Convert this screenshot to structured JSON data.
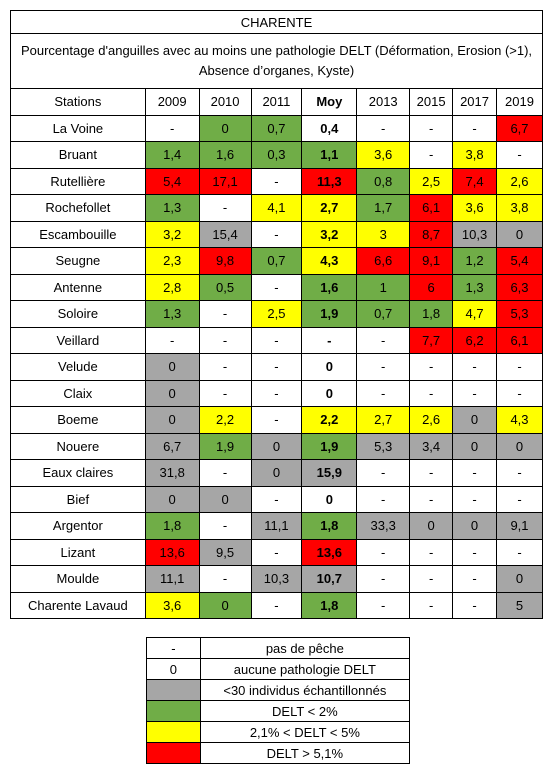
{
  "title": "CHARENTE",
  "subtitle": "Pourcentage d'anguilles avec au moins une pathologie DELT (Déformation, Erosion (>1), Absence d’organes, Kyste)",
  "table": {
    "header": [
      "Stations",
      "2009",
      "2010",
      "2011",
      "Moy",
      "2013",
      "2015",
      "2017",
      "2019"
    ],
    "colors": {
      "w": "#ffffff",
      "g": "#70ad47",
      "y": "#ffff00",
      "r": "#ff0000",
      "k": "#a6a6a6"
    },
    "rows": [
      {
        "cells": [
          "La Voine",
          "-",
          "0",
          "0,7",
          "0,4",
          "-",
          "-",
          "-",
          "6,7"
        ],
        "fill": "wwggwwwwr"
      },
      {
        "cells": [
          "Bruant",
          "1,4",
          "1,6",
          "0,3",
          "1,1",
          "3,6",
          "-",
          "3,8",
          "-"
        ],
        "fill": "wggggywyw"
      },
      {
        "cells": [
          "Rutellière",
          "5,4",
          "17,1",
          "-",
          "11,3",
          "0,8",
          "2,5",
          "7,4",
          "2,6"
        ],
        "fill": "wrrwrgyry"
      },
      {
        "cells": [
          "Rochefollet",
          "1,3",
          "-",
          "4,1",
          "2,7",
          "1,7",
          "6,1",
          "3,6",
          "3,8"
        ],
        "fill": "wgwyygryy"
      },
      {
        "cells": [
          "Escambouille",
          "3,2",
          "15,4",
          "-",
          "3,2",
          "3",
          "8,7",
          "10,3",
          "0"
        ],
        "fill": "wykwyyrkk"
      },
      {
        "cells": [
          "Seugne",
          "2,3",
          "9,8",
          "0,7",
          "4,3",
          "6,6",
          "9,1",
          "1,2",
          "5,4"
        ],
        "fill": "wyrgyrrgr"
      },
      {
        "cells": [
          "Antenne",
          "2,8",
          "0,5",
          "-",
          "1,6",
          "1",
          "6",
          "1,3",
          "6,3"
        ],
        "fill": "wygwggrgr"
      },
      {
        "cells": [
          "Soloire",
          "1,3",
          "-",
          "2,5",
          "1,9",
          "0,7",
          "1,8",
          "4,7",
          "5,3"
        ],
        "fill": "wgwygggyr"
      },
      {
        "cells": [
          "Veillard",
          "-",
          "-",
          "-",
          "-",
          "-",
          "7,7",
          "6,2",
          "6,1"
        ],
        "fill": "wwwwwwrrr"
      },
      {
        "cells": [
          "Velude",
          "0",
          "-",
          "-",
          "0",
          "-",
          "-",
          "-",
          "-"
        ],
        "fill": "wkwwwwwww"
      },
      {
        "cells": [
          "Claix",
          "0",
          "-",
          "-",
          "0",
          "-",
          "-",
          "-",
          "-"
        ],
        "fill": "wkwwwwwww"
      },
      {
        "cells": [
          "Boeme",
          "0",
          "2,2",
          "-",
          "2,2",
          "2,7",
          "2,6",
          "0",
          "4,3"
        ],
        "fill": "wkywyyyky"
      },
      {
        "cells": [
          "Nouere",
          "6,7",
          "1,9",
          "0",
          "1,9",
          "5,3",
          "3,4",
          "0",
          "0"
        ],
        "fill": "wkgkgkkkk"
      },
      {
        "cells": [
          "Eaux claires",
          "31,8",
          "-",
          "0",
          "15,9",
          "-",
          "-",
          "-",
          "-"
        ],
        "fill": "wkwkkwwww"
      },
      {
        "cells": [
          "Bief",
          "0",
          "0",
          "-",
          "0",
          "-",
          "-",
          "-",
          "-"
        ],
        "fill": "wkkwwwwww"
      },
      {
        "cells": [
          "Argentor",
          "1,8",
          "-",
          "11,1",
          "1,8",
          "33,3",
          "0",
          "0",
          "9,1"
        ],
        "fill": "wgwkgkkkk"
      },
      {
        "cells": [
          "Lizant",
          "13,6",
          "9,5",
          "-",
          "13,6",
          "-",
          "-",
          "-",
          "-"
        ],
        "fill": "wrkwrwwww"
      },
      {
        "cells": [
          "Moulde",
          "11,1",
          "-",
          "10,3",
          "10,7",
          "-",
          "-",
          "-",
          "0"
        ],
        "fill": "wkwkkwwwk"
      },
      {
        "cells": [
          "Charente Lavaud",
          "3,6",
          "0",
          "-",
          "1,8",
          "-",
          "-",
          "-",
          "5"
        ],
        "fill": "wygwgwwwk"
      }
    ]
  },
  "legend": [
    {
      "symbol": "-",
      "fill": "w",
      "label": "pas de pêche"
    },
    {
      "symbol": "0",
      "fill": "w",
      "label": "aucune pathologie DELT"
    },
    {
      "fill": "k",
      "label": "<30 individus échantillonnés"
    },
    {
      "fill": "g",
      "label": "DELT < 2%"
    },
    {
      "fill": "y",
      "label": "2,1% < DELT < 5%"
    },
    {
      "fill": "r",
      "label": "DELT > 5,1%"
    }
  ]
}
